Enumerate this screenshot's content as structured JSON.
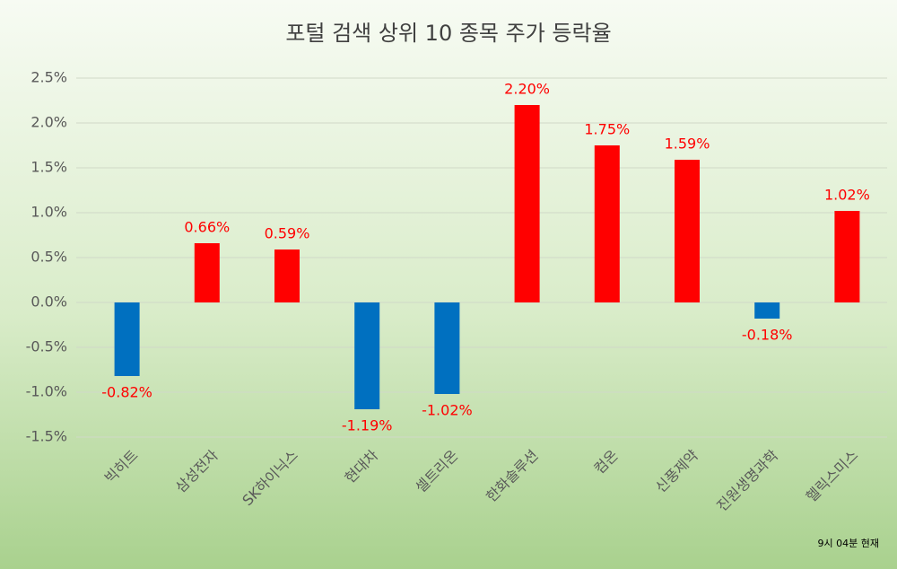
{
  "chart_data": {
    "type": "bar",
    "title": "포털 검색 상위 10 종목 주가 등락율",
    "categories": [
      "빅히트",
      "삼성전자",
      "SK하이닉스",
      "현대차",
      "셀트리온",
      "한화솔루션",
      "컴온",
      "신풍제약",
      "진원생명과학",
      "헬릭스미스"
    ],
    "values": [
      -0.82,
      0.66,
      0.59,
      -1.19,
      -1.02,
      2.2,
      1.75,
      1.59,
      -0.18,
      1.02
    ],
    "value_labels": [
      "-0.82%",
      "0.66%",
      "0.59%",
      "-1.19%",
      "-1.02%",
      "2.20%",
      "1.75%",
      "1.59%",
      "-0.18%",
      "1.02%"
    ],
    "color_positive": "#ff0000",
    "color_negative": "#0070c0",
    "label_color": "#ff0000",
    "ylim": [
      -1.5,
      2.5
    ],
    "yticks": [
      {
        "value": -1.5,
        "label": "-1.5%"
      },
      {
        "value": -1.0,
        "label": "-1.0%"
      },
      {
        "value": -0.5,
        "label": "-0.5%"
      },
      {
        "value": 0,
        "label": "0.0%"
      },
      {
        "value": 0.5,
        "label": "0.5%"
      },
      {
        "value": 1.0,
        "label": "1.0%"
      },
      {
        "value": 1.5,
        "label": "1.5%"
      },
      {
        "value": 2.0,
        "label": "2.0%"
      },
      {
        "value": 2.5,
        "label": "2.5%"
      }
    ],
    "grid": true,
    "annotation": "9시 04분 현재"
  }
}
